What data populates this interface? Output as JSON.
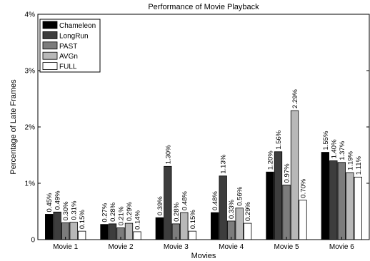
{
  "chart_data": {
    "type": "bar",
    "title": "Performance of Movie Playback",
    "xlabel": "Movies",
    "ylabel": "Percentage of Late Frames",
    "ylim": [
      0,
      4
    ],
    "yticks": [
      "0",
      "1%",
      "2%",
      "3%",
      "4%"
    ],
    "grid": false,
    "legend_position": "top-left",
    "categories": [
      "Movie 1",
      "Movie 2",
      "Movie 3",
      "Movie 4",
      "Movie 5",
      "Movie 6"
    ],
    "series": [
      {
        "name": "Chameleon",
        "color": "#000000",
        "values": [
          0.45,
          0.27,
          0.39,
          0.48,
          1.2,
          1.55
        ],
        "labels": [
          "0.45%",
          "0.27%",
          "0.39%",
          "0.48%",
          "1.20%",
          "1.55%"
        ]
      },
      {
        "name": "LongRun",
        "color": "#3d3d3d",
        "values": [
          0.49,
          0.28,
          1.3,
          1.13,
          1.56,
          1.4
        ],
        "labels": [
          "0.49%",
          "0.28%",
          "1.30%",
          "1.13%",
          "1.56%",
          "1.40%"
        ]
      },
      {
        "name": "PAST",
        "color": "#7c7c7c",
        "values": [
          0.3,
          0.21,
          0.28,
          0.33,
          0.97,
          1.37
        ],
        "labels": [
          "0.30%",
          "0.21%",
          "0.28%",
          "0.33%",
          "0.97%",
          "1.37%"
        ]
      },
      {
        "name": "AVGn",
        "color": "#b8b8b8",
        "values": [
          0.31,
          0.29,
          0.48,
          0.56,
          2.29,
          1.19
        ],
        "labels": [
          "0.31%",
          "0.29%",
          "0.48%",
          "0.56%",
          "2.29%",
          "1.19%"
        ]
      },
      {
        "name": "FULL",
        "color": "#ffffff",
        "values": [
          0.15,
          0.14,
          0.15,
          0.29,
          0.7,
          1.11
        ],
        "labels": [
          "0.15%",
          "0.14%",
          "0.15%",
          "0.29%",
          "0.70%",
          "1.11%"
        ]
      }
    ]
  }
}
